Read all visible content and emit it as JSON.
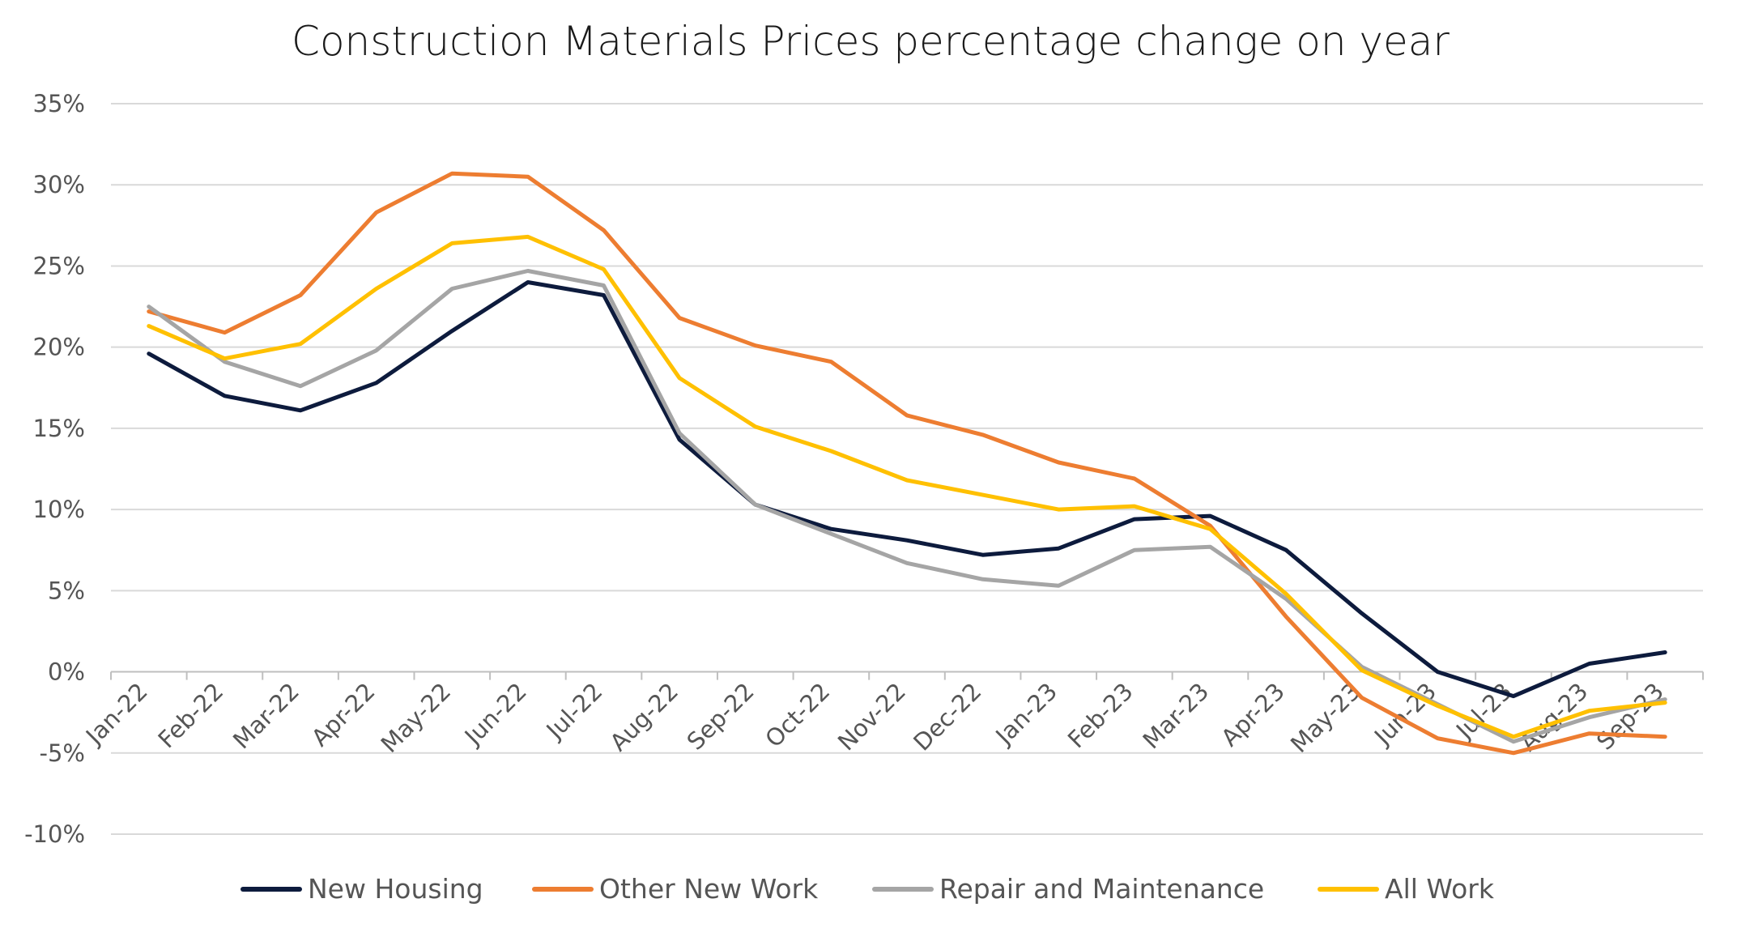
{
  "chart_data": {
    "type": "line",
    "title": "Construction Materials Prices percentage change on year",
    "xlabel": "",
    "ylabel": "",
    "categories": [
      "Jan-22",
      "Feb-22",
      "Mar-22",
      "Apr-22",
      "May-22",
      "Jun-22",
      "Jul-22",
      "Aug-22",
      "Sep-22",
      "Oct-22",
      "Nov-22",
      "Dec-22",
      "Jan-23",
      "Feb-23",
      "Mar-23",
      "Apr-23",
      "May-23",
      "Jun-23",
      "Jul-23",
      "Aug-23",
      "Sep-23"
    ],
    "ylim": [
      -10,
      35
    ],
    "yticks": [
      35,
      30,
      25,
      20,
      15,
      10,
      5,
      0,
      -5,
      -10
    ],
    "ytick_labels": [
      "35%",
      "30%",
      "25%",
      "20%",
      "15%",
      "10%",
      "5%",
      "0%",
      "-5%",
      "-10%"
    ],
    "grid": true,
    "legend_position": "bottom",
    "series": [
      {
        "name": "New Housing",
        "color": "#0d1b3d",
        "values": [
          19.6,
          17.0,
          16.1,
          17.8,
          21.0,
          24.0,
          23.2,
          14.3,
          10.3,
          8.8,
          8.1,
          7.2,
          7.6,
          9.4,
          9.6,
          7.5,
          3.6,
          0.0,
          -1.5,
          0.5,
          1.2
        ]
      },
      {
        "name": "Other New Work",
        "color": "#ed7d31",
        "values": [
          22.2,
          20.9,
          23.2,
          28.3,
          30.7,
          30.5,
          27.2,
          21.8,
          20.1,
          19.1,
          15.8,
          14.6,
          12.9,
          11.9,
          9.0,
          3.4,
          -1.6,
          -4.1,
          -5.0,
          -3.8,
          -4.0
        ]
      },
      {
        "name": "Repair and Maintenance",
        "color": "#a5a5a5",
        "values": [
          22.5,
          19.1,
          17.6,
          19.8,
          23.6,
          24.7,
          23.8,
          14.7,
          10.3,
          8.5,
          6.7,
          5.7,
          5.3,
          7.5,
          7.7,
          4.5,
          0.3,
          -2.0,
          -4.3,
          -2.8,
          -1.7
        ]
      },
      {
        "name": "All Work",
        "color": "#ffc000",
        "values": [
          21.3,
          19.3,
          20.2,
          23.6,
          26.4,
          26.8,
          24.8,
          18.1,
          15.1,
          13.6,
          11.8,
          10.9,
          10.0,
          10.2,
          8.8,
          4.8,
          0.1,
          -2.1,
          -4.0,
          -2.4,
          -1.9
        ]
      }
    ]
  }
}
